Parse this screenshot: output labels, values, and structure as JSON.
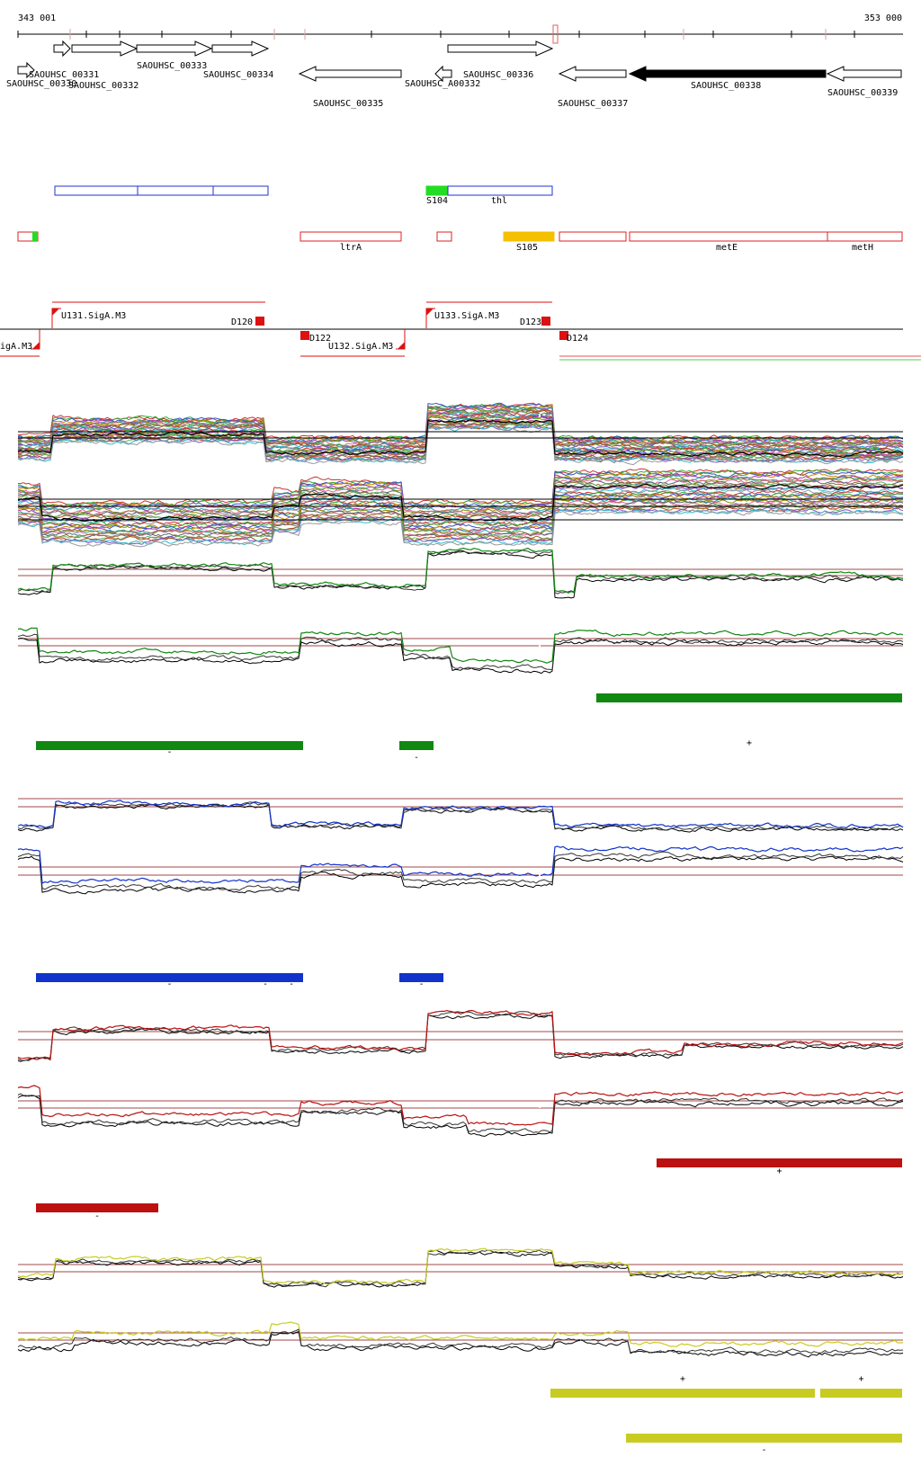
{
  "coordinates": {
    "start": "343 001",
    "end": "353 000"
  },
  "genes": [
    {
      "label": "SAOUHSC_00330",
      "strand": "+",
      "filled": false
    },
    {
      "label": "SAOUHSC_00331",
      "strand": "+",
      "filled": false
    },
    {
      "label": "SAOUHSC_00332",
      "strand": "+",
      "filled": false
    },
    {
      "label": "SAOUHSC_00333",
      "strand": "+",
      "filled": false
    },
    {
      "label": "SAOUHSC_00334",
      "strand": "+",
      "filled": false
    },
    {
      "label": "SAOUHSC_00335",
      "strand": "-",
      "filled": false
    },
    {
      "label": "SAOUHSC_A00332",
      "strand": "-",
      "filled": false
    },
    {
      "label": "SAOUHSC_00336",
      "strand": "+",
      "filled": false
    },
    {
      "label": "SAOUHSC_00337",
      "strand": "-",
      "filled": false
    },
    {
      "label": "SAOUHSC_00338",
      "strand": "-",
      "filled": true
    },
    {
      "label": "SAOUHSC_00339",
      "strand": "-",
      "filled": false
    }
  ],
  "plus_features": [
    {
      "label": "",
      "color": "#2233cc",
      "type": "outline"
    },
    {
      "label": "",
      "color": "#2233cc",
      "type": "outline"
    },
    {
      "label": "",
      "color": "#2233cc",
      "type": "outline"
    },
    {
      "label": "S104",
      "color": "#22dd22",
      "type": "filled"
    },
    {
      "label": "thl",
      "color": "#2233cc",
      "type": "outline"
    }
  ],
  "minus_features": [
    {
      "label": "",
      "color": "#dd2222",
      "type": "outline"
    },
    {
      "label": "ltrA",
      "color": "#dd2222",
      "type": "outline"
    },
    {
      "label": "",
      "color": "#dd2222",
      "type": "outline"
    },
    {
      "label": "S105",
      "color": "#f5c000",
      "type": "filled"
    },
    {
      "label": "",
      "color": "#dd2222",
      "type": "outline"
    },
    {
      "label": "metE",
      "color": "#dd2222",
      "type": "outline"
    },
    {
      "label": "metH",
      "color": "#dd2222",
      "type": "outline"
    }
  ],
  "promoters": [
    {
      "label": "U131.SigA.M3",
      "strand": "+"
    },
    {
      "label": "U133.SigA.M3",
      "strand": "+"
    },
    {
      "label": "igA.M3",
      "strand": "-"
    },
    {
      "label": "U132.SigA.M3",
      "strand": "-"
    }
  ],
  "terminators": [
    {
      "label": "D120",
      "strand": "+"
    },
    {
      "label": "D123",
      "strand": "+"
    },
    {
      "label": "D122",
      "strand": "-"
    },
    {
      "label": "D124",
      "strand": "-"
    }
  ],
  "colors": {
    "green": "#118811",
    "blue": "#1133cc",
    "red": "#bb1111",
    "yellow": "#c8cc22",
    "black": "#000000",
    "threshold": "#a04848"
  },
  "condition_tracks": [
    {
      "color_key": "green",
      "segments": [
        {
          "strand": "+",
          "label": "+"
        },
        {
          "strand": "-",
          "label": "-"
        },
        {
          "strand": "-",
          "label": "-"
        }
      ]
    },
    {
      "color_key": "blue",
      "segments": [
        {
          "strand": "-",
          "label": "-"
        },
        {
          "strand": "-",
          "label": "-"
        }
      ],
      "extra_marks": [
        "-",
        "-"
      ]
    },
    {
      "color_key": "red",
      "segments": [
        {
          "strand": "+",
          "label": "+"
        },
        {
          "strand": "-",
          "label": "-"
        }
      ]
    },
    {
      "color_key": "yellow",
      "segments": [
        {
          "strand": "+",
          "label": "+"
        },
        {
          "strand": "+",
          "label": "+"
        },
        {
          "strand": "-",
          "label": "-"
        }
      ]
    }
  ]
}
